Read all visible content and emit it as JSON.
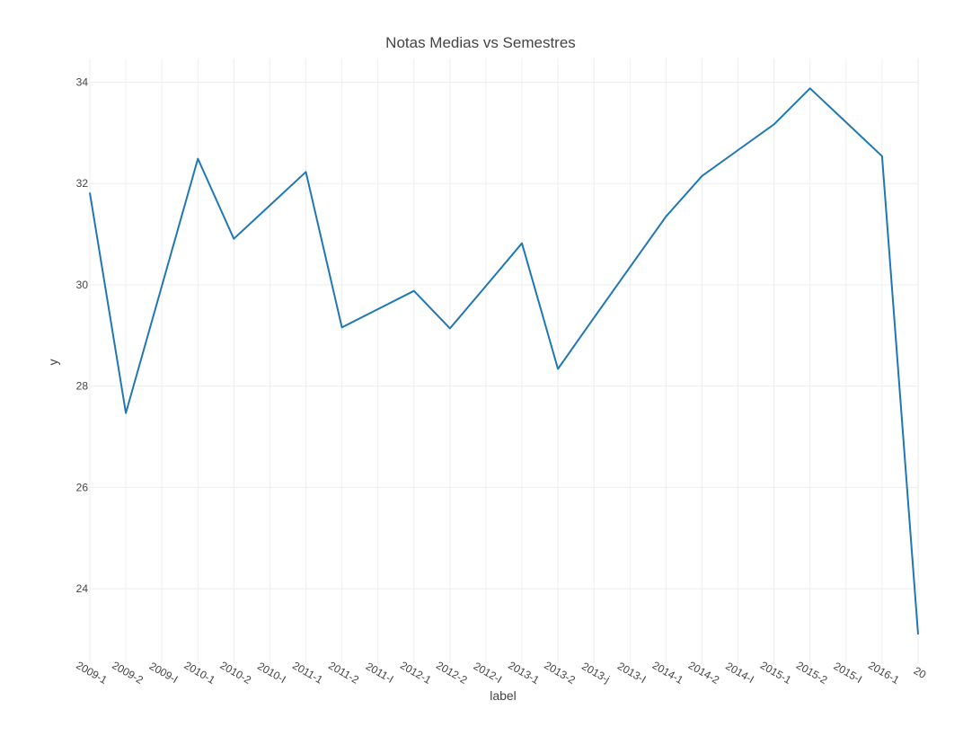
{
  "chart_data": {
    "type": "line",
    "title": "Notas Medias vs Semestres",
    "xlabel": "label",
    "ylabel": "y",
    "grid": true,
    "legend": "none",
    "categories": [
      "2009-1",
      "2009-2",
      "2009-I",
      "2010-1",
      "2010-2",
      "2010-I",
      "2011-1",
      "2011-2",
      "2011-I",
      "2012-1",
      "2012-2",
      "2012-I",
      "2013-1",
      "2013-2",
      "2013-j",
      "2013-I",
      "2014-1",
      "2014-2",
      "2014-I",
      "2015-1",
      "2015-2",
      "2015-I",
      "2016-1",
      "20"
    ],
    "values": [
      31.82,
      27.47,
      29.98,
      32.49,
      30.91,
      31.57,
      32.23,
      29.16,
      29.52,
      29.88,
      29.14,
      29.98,
      30.82,
      28.34,
      29.35,
      30.35,
      31.35,
      32.15,
      32.66,
      33.17,
      33.88,
      33.21,
      32.54,
      23.1
    ],
    "ylim": [
      22.53,
      34.47
    ],
    "yticks": [
      24,
      26,
      28,
      30,
      32,
      34
    ],
    "color": "#1f77b4"
  }
}
